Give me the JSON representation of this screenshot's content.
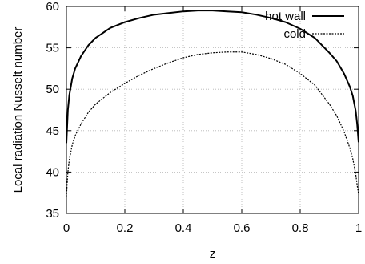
{
  "chart_data": {
    "type": "line",
    "title": "",
    "xlabel": "z",
    "ylabel": "Local radiation Nusselt number",
    "xlim": [
      0,
      1
    ],
    "ylim": [
      35,
      60
    ],
    "xticks": [
      "0",
      "0.2",
      "0.4",
      "0.6",
      "0.8",
      "1"
    ],
    "yticks": [
      "35",
      "40",
      "45",
      "50",
      "55",
      "60"
    ],
    "grid": true,
    "legend_position": "top-right",
    "series": [
      {
        "name": "hot wall",
        "style": "solid",
        "color": "#000000",
        "x": [
          0.0,
          0.005,
          0.01,
          0.02,
          0.03,
          0.05,
          0.075,
          0.1,
          0.15,
          0.2,
          0.25,
          0.3,
          0.35,
          0.4,
          0.45,
          0.5,
          0.55,
          0.6,
          0.65,
          0.7,
          0.75,
          0.8,
          0.85,
          0.9,
          0.925,
          0.95,
          0.97,
          0.98,
          0.99,
          0.995,
          1.0
        ],
        "y": [
          43.5,
          47.5,
          49.3,
          51.3,
          52.5,
          54.0,
          55.3,
          56.2,
          57.4,
          58.1,
          58.6,
          59.0,
          59.2,
          59.4,
          59.5,
          59.5,
          59.4,
          59.3,
          59.0,
          58.6,
          58.1,
          57.3,
          56.2,
          54.4,
          53.4,
          51.9,
          50.3,
          49.2,
          47.4,
          45.8,
          43.6
        ]
      },
      {
        "name": "cold",
        "style": "dashed",
        "color": "#000000",
        "x": [
          0.0,
          0.005,
          0.01,
          0.02,
          0.03,
          0.05,
          0.075,
          0.1,
          0.15,
          0.2,
          0.25,
          0.3,
          0.35,
          0.4,
          0.45,
          0.5,
          0.55,
          0.6,
          0.65,
          0.7,
          0.75,
          0.8,
          0.85,
          0.9,
          0.925,
          0.95,
          0.97,
          0.98,
          0.99,
          0.995,
          1.0
        ],
        "y": [
          37.0,
          40.0,
          41.5,
          43.3,
          44.4,
          45.8,
          47.2,
          48.2,
          49.6,
          50.7,
          51.7,
          52.5,
          53.2,
          53.8,
          54.2,
          54.4,
          54.5,
          54.5,
          54.2,
          53.7,
          53.0,
          51.9,
          50.5,
          48.2,
          46.8,
          44.9,
          42.9,
          41.6,
          39.8,
          38.4,
          37.3
        ]
      }
    ]
  }
}
